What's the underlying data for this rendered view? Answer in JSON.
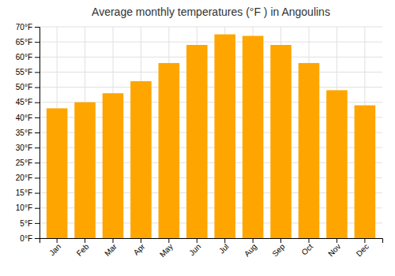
{
  "chart_data": {
    "type": "bar",
    "title": "Average monthly temperatures (°F ) in Angoulins",
    "categories": [
      "Jan",
      "Feb",
      "Mar",
      "Apr",
      "May",
      "Jun",
      "Jul",
      "Aug",
      "Sep",
      "Oct",
      "Nov",
      "Dec"
    ],
    "values": [
      43,
      45,
      48,
      52,
      58,
      64,
      67.5,
      67,
      64,
      58,
      49,
      44
    ],
    "color": "#FFA500",
    "ylim": [
      0,
      70
    ],
    "yticks": [
      {
        "value": 0,
        "label": "0°F"
      },
      {
        "value": 5,
        "label": "5°F"
      },
      {
        "value": 10,
        "label": "10°F"
      },
      {
        "value": 15,
        "label": "15°F"
      },
      {
        "value": 20,
        "label": "20°F"
      },
      {
        "value": 25,
        "label": "25°F"
      },
      {
        "value": 30,
        "label": "30°F"
      },
      {
        "value": 35,
        "label": "35°F"
      },
      {
        "value": 40,
        "label": "40°F"
      },
      {
        "value": 45,
        "label": "45°F"
      },
      {
        "value": 50,
        "label": "50°F"
      },
      {
        "value": 55,
        "label": "55°F"
      },
      {
        "value": 60,
        "label": "60°F"
      },
      {
        "value": 65,
        "label": "65°F"
      },
      {
        "value": 70,
        "label": "70°F"
      }
    ],
    "grid": true
  }
}
